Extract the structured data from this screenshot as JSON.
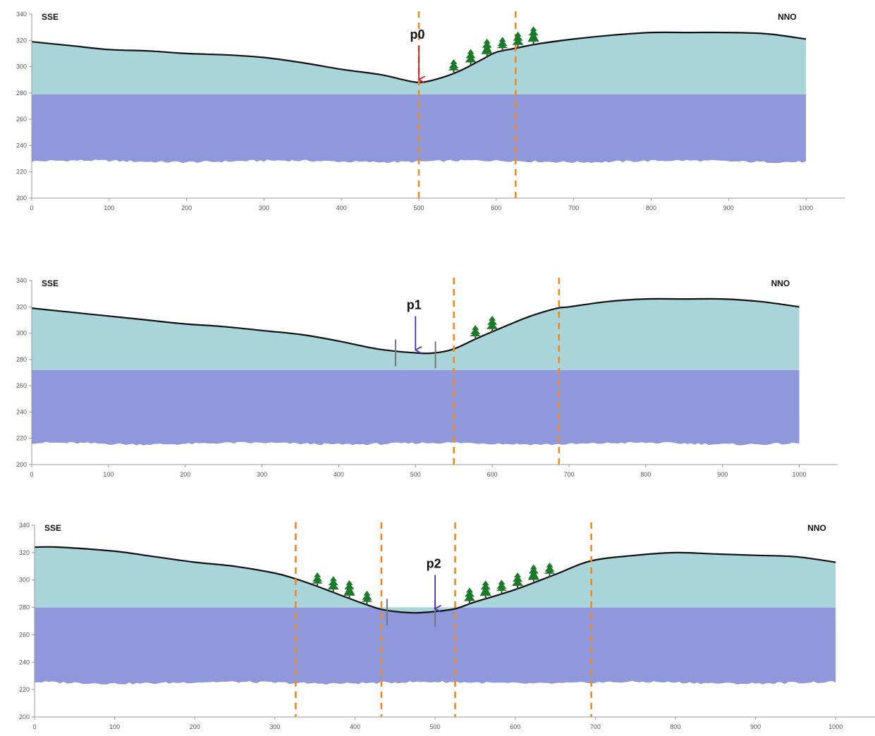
{
  "colors": {
    "upper_layer": "#a9d4d9",
    "lower_layer": "#8f98db",
    "profile_line": "#111111",
    "marker_line": "#ee8a1f",
    "tree": "#1a7a2a",
    "axis": "#999999",
    "arrow_p0": "#d51e1e",
    "arrow_p1": "#4a2fbf",
    "arrow_p2": "#4a2fbf",
    "stream_bank": "#777777"
  },
  "chart_data": [
    {
      "type": "area",
      "profile_label": "p0",
      "left_label": "SSE",
      "right_label": "NNO",
      "xlim": [
        0,
        1050
      ],
      "ylim": [
        200,
        340
      ],
      "x_ticks": [
        "0",
        "100",
        "200",
        "300",
        "400",
        "500",
        "600",
        "700",
        "800",
        "900",
        "1000"
      ],
      "y_ticks": [
        "200",
        "220",
        "240",
        "260",
        "280",
        "300",
        "320",
        "340"
      ],
      "surface": {
        "x": [
          0,
          50,
          100,
          150,
          200,
          250,
          300,
          350,
          400,
          450,
          480,
          500,
          520,
          550,
          580,
          600,
          625,
          650,
          700,
          750,
          800,
          850,
          900,
          950,
          1000
        ],
        "y": [
          319,
          316,
          313,
          312,
          310,
          309,
          307,
          303,
          298,
          294,
          290,
          288,
          290,
          296,
          305,
          311,
          314,
          317,
          321,
          324,
          326,
          326,
          326,
          325,
          321
        ]
      },
      "layer_boundary": 279,
      "lower_bottom": 228,
      "markers_x": [
        500,
        625
      ],
      "arrow_x": 500,
      "stream_banks_x": [],
      "trees_x": [
        545,
        567,
        588,
        608,
        628,
        648
      ]
    },
    {
      "type": "area",
      "profile_label": "p1",
      "left_label": "SSE",
      "right_label": "NNO",
      "xlim": [
        0,
        1050
      ],
      "ylim": [
        200,
        340
      ],
      "x_ticks": [
        "0",
        "100",
        "200",
        "300",
        "400",
        "500",
        "600",
        "700",
        "800",
        "900",
        "1000"
      ],
      "y_ticks": [
        "200",
        "220",
        "240",
        "260",
        "280",
        "300",
        "320",
        "340"
      ],
      "surface": {
        "x": [
          0,
          50,
          100,
          150,
          200,
          250,
          300,
          350,
          400,
          450,
          500,
          525,
          550,
          580,
          620,
          650,
          685,
          700,
          750,
          800,
          850,
          900,
          950,
          1000
        ],
        "y": [
          319,
          316,
          313,
          310,
          307,
          305,
          302,
          299,
          294,
          288,
          285,
          285,
          288,
          296,
          306,
          313,
          319,
          320,
          324,
          326,
          326,
          326,
          324,
          320
        ]
      },
      "layer_boundary": 272,
      "lower_bottom": 216,
      "markers_x": [
        550,
        687
      ],
      "arrow_x": 500,
      "stream_banks_x": [
        474,
        526
      ],
      "trees_x": [
        578,
        600
      ]
    },
    {
      "type": "area",
      "profile_label": "p2",
      "left_label": "SSE",
      "right_label": "NNO",
      "xlim": [
        0,
        1050
      ],
      "ylim": [
        200,
        340
      ],
      "x_ticks": [
        "0",
        "100",
        "200",
        "300",
        "400",
        "500",
        "600",
        "700",
        "800",
        "900",
        "1000"
      ],
      "y_ticks": [
        "200",
        "220",
        "240",
        "260",
        "280",
        "300",
        "320",
        "340"
      ],
      "surface": {
        "x": [
          0,
          30,
          100,
          150,
          200,
          250,
          300,
          325,
          350,
          400,
          430,
          450,
          475,
          500,
          525,
          550,
          600,
          650,
          695,
          750,
          800,
          850,
          900,
          950,
          1000
        ],
        "y": [
          324,
          324,
          321,
          317,
          313,
          310,
          305,
          301,
          296,
          285,
          279,
          277,
          276,
          277,
          279,
          284,
          293,
          304,
          314,
          318,
          320,
          319,
          318,
          317,
          313
        ]
      },
      "layer_boundary": 280,
      "lower_bottom": 225,
      "markers_x": [
        326,
        433,
        525,
        695
      ],
      "arrow_x": 500,
      "stream_banks_x": [
        440,
        500
      ],
      "trees_x": [
        353,
        373,
        393,
        415,
        543,
        563,
        583,
        603,
        623,
        643
      ]
    }
  ]
}
